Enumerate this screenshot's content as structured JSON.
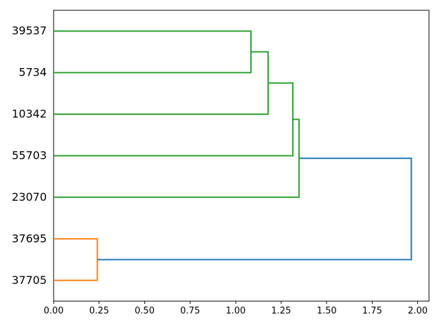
{
  "chart_data": {
    "type": "dendrogram",
    "orientation": "left",
    "title": "",
    "xlabel": "",
    "ylabel": "",
    "leaves": [
      "39537",
      "5734",
      "10342",
      "55703",
      "23070",
      "37695",
      "37705"
    ],
    "links": [
      {
        "children_y": [
          0,
          1
        ],
        "children_x": [
          0,
          0
        ],
        "distance": 1.084,
        "color_key": "green",
        "members": "39537+5734"
      },
      {
        "children_y": [
          0.5,
          2
        ],
        "children_x": [
          1.084,
          0
        ],
        "distance": 1.178,
        "color_key": "green",
        "members": "(39537,5734)+10342"
      },
      {
        "children_y": [
          1.25,
          3
        ],
        "children_x": [
          1.178,
          0
        ],
        "distance": 1.314,
        "color_key": "green",
        "members": "(39537,5734,10342)+55703"
      },
      {
        "children_y": [
          2.125,
          4
        ],
        "children_x": [
          1.314,
          0
        ],
        "distance": 1.348,
        "color_key": "green",
        "members": "(39537,5734,10342,55703)+23070"
      },
      {
        "children_y": [
          5,
          6
        ],
        "children_x": [
          0,
          0
        ],
        "distance": 0.24,
        "color_key": "orange",
        "members": "37695+37705"
      },
      {
        "children_y": [
          3.0625,
          5.5
        ],
        "children_x": [
          1.348,
          0.24
        ],
        "distance": 1.965,
        "color_key": "blue",
        "members": "green-cluster+orange-cluster"
      }
    ],
    "x_axis": {
      "ticks": [
        "0.00",
        "0.25",
        "0.50",
        "0.75",
        "1.00",
        "1.25",
        "1.50",
        "1.75",
        "2.00"
      ],
      "tick_values": [
        0,
        0.25,
        0.5,
        0.75,
        1.0,
        1.25,
        1.5,
        1.75,
        2.0
      ],
      "range": [
        0,
        2.062
      ]
    },
    "legend": null,
    "grid": false,
    "colors": {
      "green": "#2ca02c",
      "orange": "#ff7f0e",
      "blue": "#1f77b4",
      "spine": "#000000",
      "text": "#000000",
      "background": "#ffffff"
    }
  }
}
